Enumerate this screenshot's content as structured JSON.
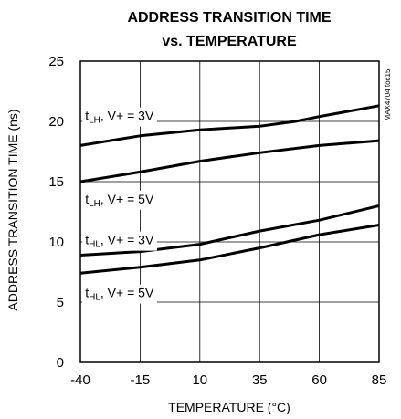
{
  "chart_data": {
    "type": "line",
    "title": [
      "ADDRESS TRANSITION TIME",
      "vs. TEMPERATURE"
    ],
    "xlabel": "TEMPERATURE (°C)",
    "ylabel": "ADDRESS TRANSITION TIME (ns)",
    "xlim": [
      -40,
      85
    ],
    "ylim": [
      0,
      25
    ],
    "xticks": [
      -40,
      -15,
      10,
      35,
      60,
      85
    ],
    "yticks": [
      0,
      5,
      10,
      15,
      20,
      25
    ],
    "grid": true,
    "watermark": "MAX4704 toc15",
    "series": [
      {
        "label_main": "t",
        "label_sub": "LH",
        "label_rest": ", V+ = 3V",
        "label_pos": [
          -38,
          20.1
        ],
        "x": [
          -40,
          -15,
          10,
          35,
          50,
          60,
          85
        ],
        "y": [
          18.0,
          18.8,
          19.3,
          19.6,
          20.0,
          20.4,
          21.3
        ]
      },
      {
        "label_main": "t",
        "label_sub": "LH",
        "label_rest": ", V+ = 5V",
        "label_pos": [
          -38,
          13.2
        ],
        "x": [
          -40,
          -15,
          10,
          35,
          60,
          85
        ],
        "y": [
          15.0,
          15.8,
          16.7,
          17.4,
          18.0,
          18.4
        ]
      },
      {
        "label_main": "t",
        "label_sub": "HL",
        "label_rest": ", V+ = 3V",
        "label_pos": [
          -38,
          9.8
        ],
        "x": [
          -40,
          -15,
          10,
          35,
          60,
          85
        ],
        "y": [
          8.9,
          9.2,
          9.8,
          10.9,
          11.8,
          13.0
        ]
      },
      {
        "label_main": "t",
        "label_sub": "HL",
        "label_rest": ", V+ = 5V",
        "label_pos": [
          -38,
          5.4
        ],
        "x": [
          -40,
          -15,
          10,
          35,
          60,
          85
        ],
        "y": [
          7.4,
          7.9,
          8.5,
          9.5,
          10.6,
          11.4
        ]
      }
    ]
  }
}
